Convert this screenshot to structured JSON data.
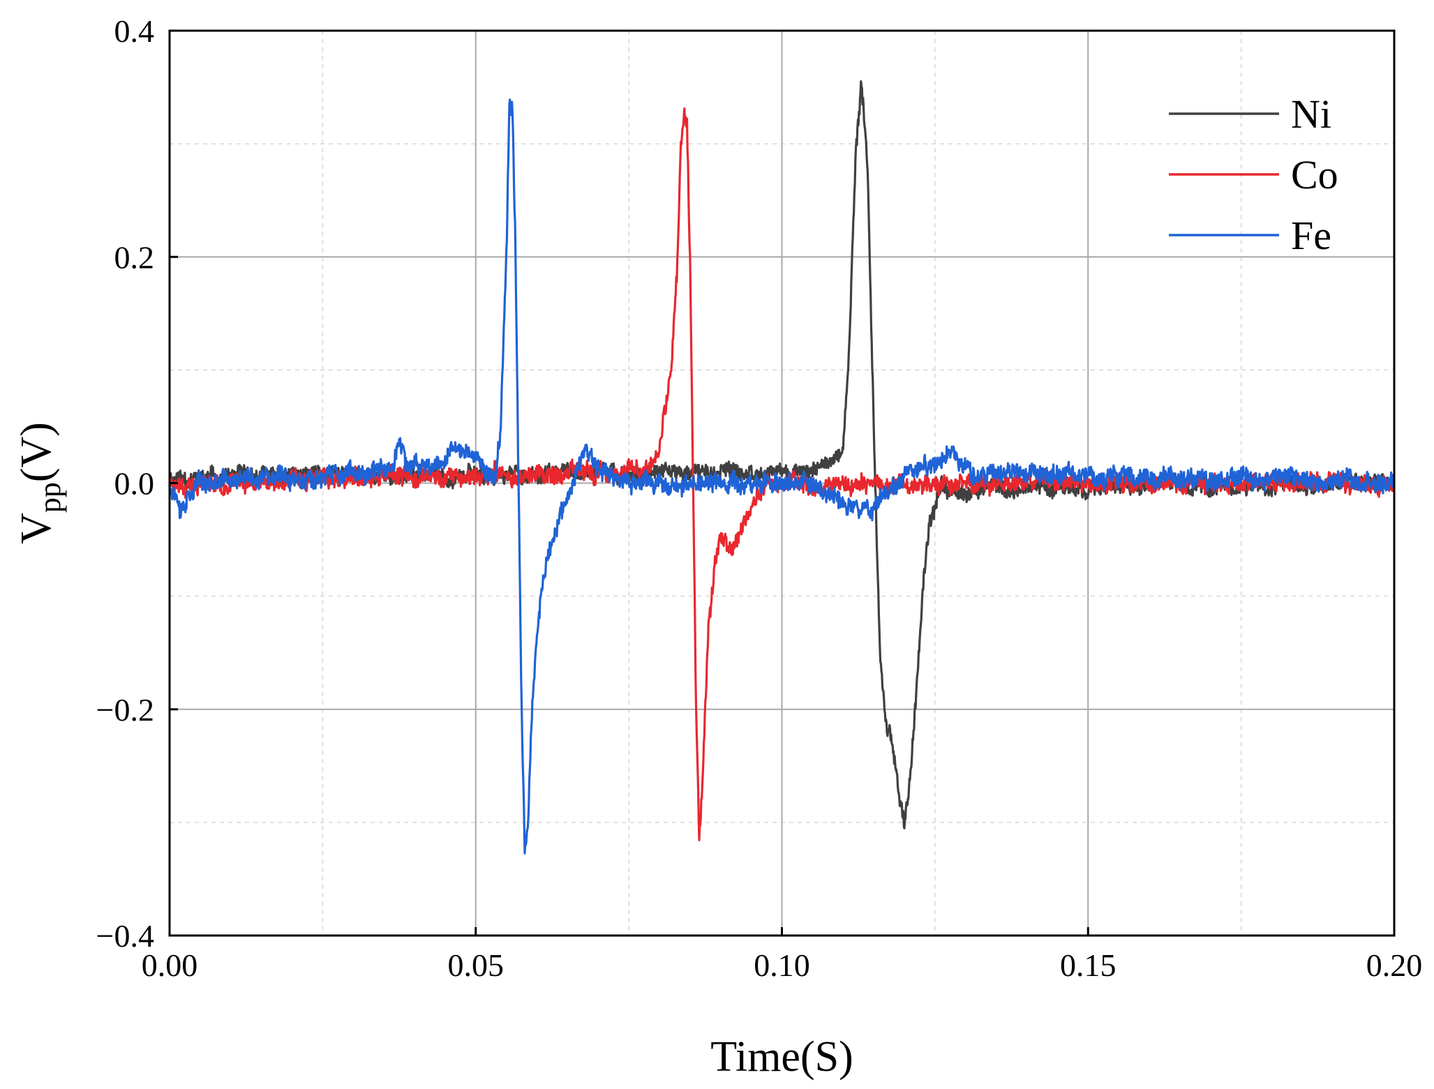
{
  "chart_data": {
    "type": "line",
    "title": "",
    "xlabel": "Time(S)",
    "ylabel_main": "V",
    "ylabel_sub": "pp",
    "ylabel_tail": "(V)",
    "xlim": [
      0,
      0.2
    ],
    "ylim": [
      -0.4,
      0.4
    ],
    "x_ticks": [
      0,
      0.05,
      0.1,
      0.15,
      0.2
    ],
    "x_tick_labels": [
      "0.00",
      "0.05",
      "0.10",
      "0.15",
      "0.20"
    ],
    "x_minor_ticks": [
      0.025,
      0.075,
      0.125,
      0.175
    ],
    "y_ticks": [
      -0.4,
      -0.2,
      0,
      0.2,
      0.4
    ],
    "y_tick_labels": [
      "−0.4",
      "−0.2",
      "0.0",
      "0.2",
      "0.4"
    ],
    "y_minor_ticks": [
      -0.3,
      -0.1,
      0.1,
      0.3
    ],
    "grid": true,
    "legend_position": "top-right",
    "series": [
      {
        "name": "Ni",
        "color": "#404040",
        "noise_amplitude": 0.012,
        "noise_seed": 11,
        "points": [
          [
            0,
            0.005
          ],
          [
            0.105,
            0.01
          ],
          [
            0.108,
            0.02
          ],
          [
            0.11,
            0.03
          ],
          [
            0.111,
            0.12
          ],
          [
            0.112,
            0.28
          ],
          [
            0.113,
            0.36
          ],
          [
            0.114,
            0.28
          ],
          [
            0.115,
            0.05
          ],
          [
            0.116,
            -0.15
          ],
          [
            0.117,
            -0.21
          ],
          [
            0.118,
            -0.23
          ],
          [
            0.119,
            -0.27
          ],
          [
            0.12,
            -0.3
          ],
          [
            0.121,
            -0.26
          ],
          [
            0.122,
            -0.18
          ],
          [
            0.123,
            -0.1
          ],
          [
            0.124,
            -0.04
          ],
          [
            0.126,
            -0.005
          ],
          [
            0.2,
            0
          ]
        ]
      },
      {
        "name": "Co",
        "color": "#e8282e",
        "noise_amplitude": 0.013,
        "noise_seed": 23,
        "points": [
          [
            0,
            0
          ],
          [
            0.078,
            0.01
          ],
          [
            0.08,
            0.03
          ],
          [
            0.082,
            0.1
          ],
          [
            0.083,
            0.2
          ],
          [
            0.0835,
            0.3
          ],
          [
            0.084,
            0.33
          ],
          [
            0.0845,
            0.32
          ],
          [
            0.085,
            0.2
          ],
          [
            0.0855,
            0.0
          ],
          [
            0.086,
            -0.2
          ],
          [
            0.0865,
            -0.31
          ],
          [
            0.087,
            -0.26
          ],
          [
            0.088,
            -0.13
          ],
          [
            0.089,
            -0.07
          ],
          [
            0.09,
            -0.05
          ],
          [
            0.091,
            -0.055
          ],
          [
            0.092,
            -0.06
          ],
          [
            0.093,
            -0.05
          ],
          [
            0.094,
            -0.03
          ],
          [
            0.096,
            -0.01
          ],
          [
            0.098,
            0
          ],
          [
            0.2,
            0
          ]
        ]
      },
      {
        "name": "Fe",
        "color": "#1f63d6",
        "noise_amplitude": 0.014,
        "noise_seed": 37,
        "points": [
          [
            0,
            0
          ],
          [
            0.002,
            -0.02
          ],
          [
            0.004,
            0
          ],
          [
            0.036,
            0.01
          ],
          [
            0.0375,
            0.04
          ],
          [
            0.039,
            0.01
          ],
          [
            0.044,
            0.02
          ],
          [
            0.046,
            0.03
          ],
          [
            0.05,
            0.025
          ],
          [
            0.053,
            0.0
          ],
          [
            0.054,
            0.04
          ],
          [
            0.055,
            0.2
          ],
          [
            0.0555,
            0.34
          ],
          [
            0.056,
            0.33
          ],
          [
            0.0565,
            0.2
          ],
          [
            0.057,
            0.0
          ],
          [
            0.0575,
            -0.2
          ],
          [
            0.058,
            -0.32
          ],
          [
            0.0585,
            -0.3
          ],
          [
            0.059,
            -0.22
          ],
          [
            0.06,
            -0.13
          ],
          [
            0.061,
            -0.08
          ],
          [
            0.062,
            -0.06
          ],
          [
            0.063,
            -0.04
          ],
          [
            0.065,
            -0.015
          ],
          [
            0.068,
            0.03
          ],
          [
            0.07,
            0.01
          ],
          [
            0.075,
            0
          ],
          [
            0.105,
            0
          ],
          [
            0.11,
            -0.02
          ],
          [
            0.115,
            -0.02
          ],
          [
            0.12,
            0.01
          ],
          [
            0.128,
            0.025
          ],
          [
            0.13,
            0.01
          ],
          [
            0.2,
            0
          ]
        ]
      }
    ]
  }
}
